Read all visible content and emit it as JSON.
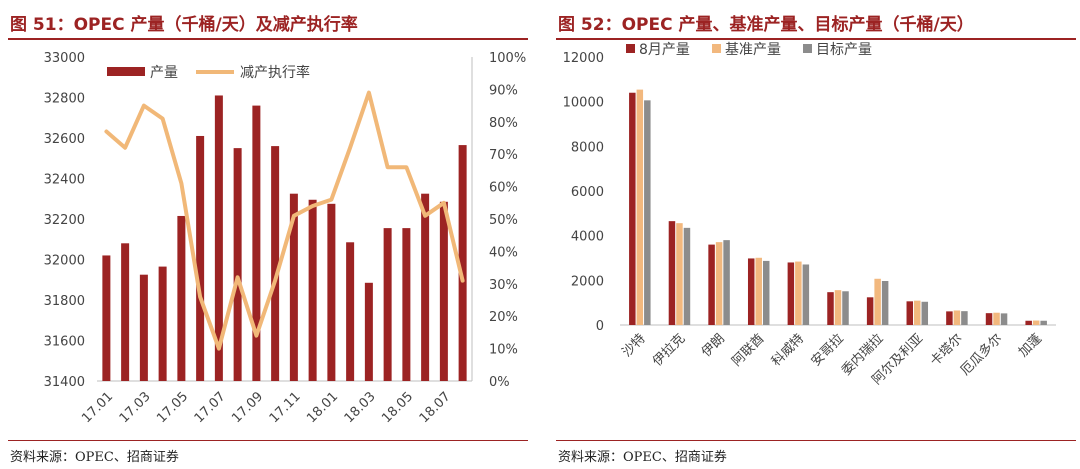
{
  "left_panel": {
    "title": "图 51：OPEC 产量（千桶/天）及减产执行率",
    "source": "资料来源：OPEC、招商证券"
  },
  "right_panel": {
    "title": "图 52：OPEC 产量、基准产量、目标产量（千桶/天）",
    "source": "资料来源：OPEC、招商证券"
  },
  "colors": {
    "bar_red": "#9c2323",
    "line_orange": "#f1b878",
    "bar_orange": "#f2b87e",
    "bar_gray": "#8c8c8c",
    "title_red": "#9c2323"
  },
  "chart_data": [
    {
      "type": "bar+line",
      "title": "OPEC 产量（千桶/天）及减产执行率",
      "categories": [
        "17.01",
        "17.02",
        "17.03",
        "17.04",
        "17.05",
        "17.06",
        "17.07",
        "17.08",
        "17.09",
        "17.10",
        "17.11",
        "17.12",
        "18.01",
        "18.02",
        "18.03",
        "18.04",
        "18.05",
        "18.06",
        "18.07",
        "18.08"
      ],
      "x_tick_labels": [
        "17.01",
        "17.03",
        "17.05",
        "17.07",
        "17.09",
        "17.11",
        "18.01",
        "18.03",
        "18.05",
        "18.07"
      ],
      "series": [
        {
          "name": "产量",
          "type": "bar",
          "axis": "left",
          "values": [
            32020,
            32080,
            31925,
            31965,
            32215,
            32610,
            32810,
            32550,
            32760,
            32560,
            32325,
            32295,
            32275,
            32085,
            31885,
            32155,
            32155,
            32325,
            32285,
            32565
          ]
        },
        {
          "name": "减产执行率",
          "type": "line",
          "axis": "right",
          "values": [
            77,
            72,
            85,
            81,
            61,
            26,
            10,
            32,
            14,
            31,
            51,
            54,
            56,
            72,
            89,
            66,
            66,
            51,
            55,
            31
          ]
        }
      ],
      "ylim_left": [
        31400,
        33000
      ],
      "yticks_left": [
        31400,
        31600,
        31800,
        32000,
        32200,
        32400,
        32600,
        32800,
        33000
      ],
      "ylim_right": [
        0,
        100
      ],
      "yticks_right": [
        "0%",
        "10%",
        "20%",
        "30%",
        "40%",
        "50%",
        "60%",
        "70%",
        "80%",
        "90%",
        "100%"
      ],
      "legend": [
        "产量",
        "减产执行率"
      ],
      "legend_position": "top-left"
    },
    {
      "type": "bar",
      "title": "OPEC 产量、基准产量、目标产量（千桶/天）",
      "categories": [
        "沙特",
        "伊拉克",
        "伊朗",
        "阿联酋",
        "科威特",
        "安哥拉",
        "委内瑞拉",
        "阿尔及利亚",
        "卡塔尔",
        "厄瓜多尔",
        "加蓬"
      ],
      "series": [
        {
          "name": "8月产量",
          "values": [
            10400,
            4650,
            3600,
            2980,
            2800,
            1470,
            1240,
            1060,
            610,
            530,
            190
          ]
        },
        {
          "name": "基准产量",
          "values": [
            10540,
            4560,
            3710,
            3010,
            2840,
            1560,
            2070,
            1090,
            650,
            550,
            200
          ]
        },
        {
          "name": "目标产量",
          "values": [
            10060,
            4350,
            3800,
            2870,
            2710,
            1510,
            1970,
            1040,
            620,
            520,
            190
          ]
        }
      ],
      "ylim": [
        0,
        12000
      ],
      "yticks": [
        0,
        2000,
        4000,
        6000,
        8000,
        10000,
        12000
      ],
      "legend": [
        "8月产量",
        "基准产量",
        "目标产量"
      ],
      "legend_position": "top-left"
    }
  ]
}
